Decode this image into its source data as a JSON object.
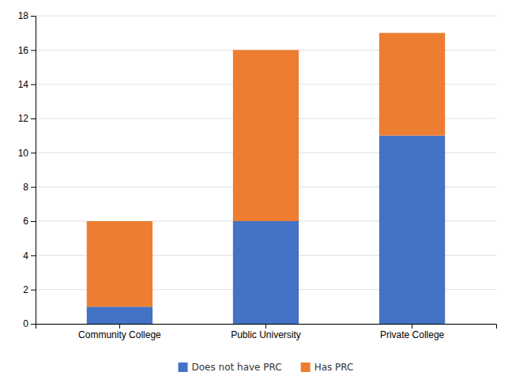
{
  "chart_data": {
    "type": "bar",
    "stacked": true,
    "categories": [
      "Community College",
      "Public University",
      "Private College"
    ],
    "series": [
      {
        "name": "Does not have PRC",
        "color": "#4472C4",
        "values": [
          1,
          6,
          11
        ]
      },
      {
        "name": "Has PRC",
        "color": "#ED7D31",
        "values": [
          5,
          10,
          6
        ]
      }
    ],
    "ylim": [
      0,
      18
    ],
    "yticks": [
      0,
      2,
      4,
      6,
      8,
      10,
      12,
      14,
      16,
      18
    ],
    "grid": true,
    "legend": "bottom"
  }
}
